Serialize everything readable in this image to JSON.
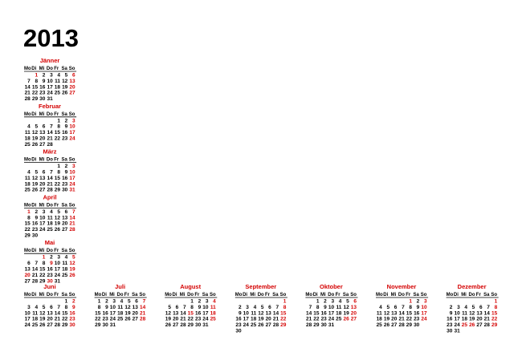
{
  "title": "2013",
  "weekdays": [
    "Mo",
    "Di",
    "Mi",
    "Do",
    "Fr",
    "Sa",
    "So"
  ],
  "months": [
    {
      "name": "Jänner",
      "holidays": [
        1,
        6
      ],
      "weeks": [
        [
          null,
          1,
          2,
          3,
          4,
          5,
          6
        ],
        [
          7,
          8,
          9,
          10,
          11,
          12,
          13
        ],
        [
          14,
          15,
          16,
          17,
          18,
          19,
          20
        ],
        [
          21,
          22,
          23,
          24,
          25,
          26,
          27
        ],
        [
          28,
          29,
          30,
          31
        ]
      ]
    },
    {
      "name": "Februar",
      "holidays": [],
      "weeks": [
        [
          null,
          null,
          null,
          null,
          1,
          2,
          3
        ],
        [
          4,
          5,
          6,
          7,
          8,
          9,
          10
        ],
        [
          11,
          12,
          13,
          14,
          15,
          16,
          17
        ],
        [
          18,
          19,
          20,
          21,
          22,
          23,
          24
        ],
        [
          25,
          26,
          27,
          28
        ]
      ]
    },
    {
      "name": "März",
      "holidays": [
        31
      ],
      "weeks": [
        [
          null,
          null,
          null,
          null,
          1,
          2,
          3
        ],
        [
          4,
          5,
          6,
          7,
          8,
          9,
          10
        ],
        [
          11,
          12,
          13,
          14,
          15,
          16,
          17
        ],
        [
          18,
          19,
          20,
          21,
          22,
          23,
          24
        ],
        [
          25,
          26,
          27,
          28,
          29,
          30,
          31
        ]
      ]
    },
    {
      "name": "April",
      "holidays": [
        1
      ],
      "weeks": [
        [
          1,
          2,
          3,
          4,
          5,
          6,
          7
        ],
        [
          8,
          9,
          10,
          11,
          12,
          13,
          14
        ],
        [
          15,
          16,
          17,
          18,
          19,
          20,
          21
        ],
        [
          22,
          23,
          24,
          25,
          26,
          27,
          28
        ],
        [
          29,
          30
        ]
      ]
    },
    {
      "name": "Mai",
      "holidays": [
        1,
        9,
        20,
        30
      ],
      "weeks": [
        [
          null,
          null,
          1,
          2,
          3,
          4,
          5
        ],
        [
          6,
          7,
          8,
          9,
          10,
          11,
          12
        ],
        [
          13,
          14,
          15,
          16,
          17,
          18,
          19
        ],
        [
          20,
          21,
          22,
          23,
          24,
          25,
          26
        ],
        [
          27,
          28,
          29,
          30,
          31
        ]
      ]
    },
    {
      "name": "Juni",
      "holidays": [],
      "weeks": [
        [
          null,
          null,
          null,
          null,
          null,
          1,
          2
        ],
        [
          3,
          4,
          5,
          6,
          7,
          8,
          9
        ],
        [
          10,
          11,
          12,
          13,
          14,
          15,
          16
        ],
        [
          17,
          18,
          19,
          20,
          21,
          22,
          23
        ],
        [
          24,
          25,
          26,
          27,
          28,
          29,
          30
        ]
      ]
    },
    {
      "name": "Juli",
      "holidays": [],
      "weeks": [
        [
          1,
          2,
          3,
          4,
          5,
          6,
          7
        ],
        [
          8,
          9,
          10,
          11,
          12,
          13,
          14
        ],
        [
          15,
          16,
          17,
          18,
          19,
          20,
          21
        ],
        [
          22,
          23,
          24,
          25,
          26,
          27,
          28
        ],
        [
          29,
          30,
          31
        ]
      ]
    },
    {
      "name": "August",
      "holidays": [
        15
      ],
      "weeks": [
        [
          null,
          null,
          null,
          1,
          2,
          3,
          4
        ],
        [
          5,
          6,
          7,
          8,
          9,
          10,
          11
        ],
        [
          12,
          13,
          14,
          15,
          16,
          17,
          18
        ],
        [
          19,
          20,
          21,
          22,
          23,
          24,
          25
        ],
        [
          26,
          27,
          28,
          29,
          30,
          31
        ]
      ]
    },
    {
      "name": "September",
      "holidays": [],
      "weeks": [
        [
          null,
          null,
          null,
          null,
          null,
          null,
          1
        ],
        [
          2,
          3,
          4,
          5,
          6,
          7,
          8
        ],
        [
          9,
          10,
          11,
          12,
          13,
          14,
          15
        ],
        [
          16,
          17,
          18,
          19,
          20,
          21,
          22
        ],
        [
          23,
          24,
          25,
          26,
          27,
          28,
          29
        ],
        [
          30
        ]
      ]
    },
    {
      "name": "Oktober",
      "holidays": [
        26
      ],
      "weeks": [
        [
          null,
          1,
          2,
          3,
          4,
          5,
          6
        ],
        [
          7,
          8,
          9,
          10,
          11,
          12,
          13
        ],
        [
          14,
          15,
          16,
          17,
          18,
          19,
          20
        ],
        [
          21,
          22,
          23,
          24,
          25,
          26,
          27
        ],
        [
          28,
          29,
          30,
          31
        ]
      ]
    },
    {
      "name": "November",
      "holidays": [
        1
      ],
      "weeks": [
        [
          null,
          null,
          null,
          null,
          1,
          2,
          3
        ],
        [
          4,
          5,
          6,
          7,
          8,
          9,
          10
        ],
        [
          11,
          12,
          13,
          14,
          15,
          16,
          17
        ],
        [
          18,
          19,
          20,
          21,
          22,
          23,
          24
        ],
        [
          25,
          26,
          27,
          28,
          29,
          30
        ]
      ]
    },
    {
      "name": "Dezember",
      "holidays": [
        8,
        25,
        26
      ],
      "weeks": [
        [
          null,
          null,
          null,
          null,
          null,
          null,
          1
        ],
        [
          2,
          3,
          4,
          5,
          6,
          7,
          8
        ],
        [
          9,
          10,
          11,
          12,
          13,
          14,
          15
        ],
        [
          16,
          17,
          18,
          19,
          20,
          21,
          22
        ],
        [
          23,
          24,
          25,
          26,
          27,
          28,
          29
        ],
        [
          30,
          31
        ]
      ]
    }
  ]
}
